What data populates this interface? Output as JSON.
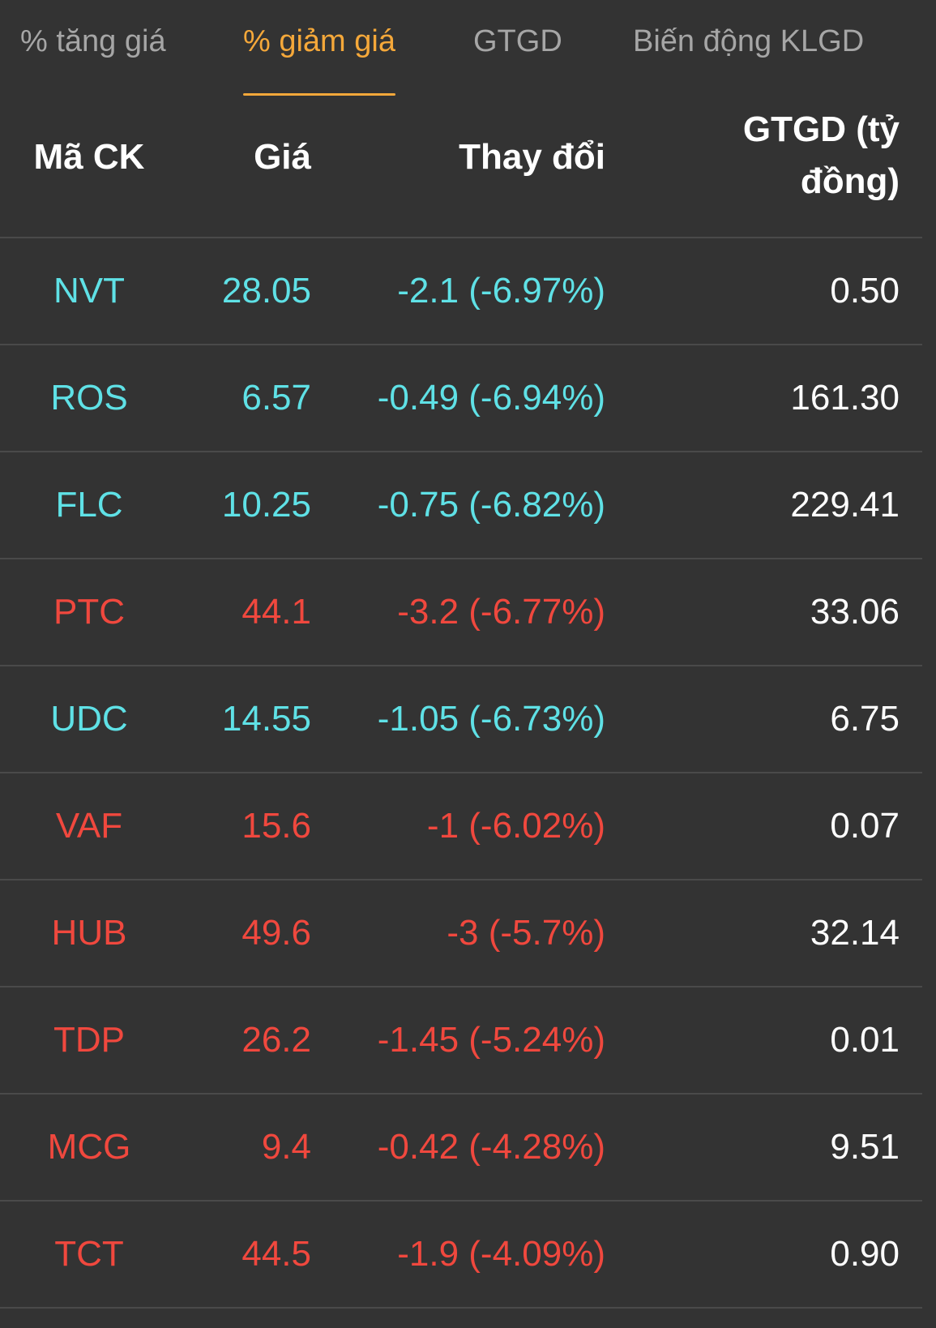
{
  "tabs": [
    {
      "label": "% tăng giá",
      "active": false
    },
    {
      "label": "% giảm giá",
      "active": true
    },
    {
      "label": "GTGD",
      "active": false
    },
    {
      "label": "Biến động KLGD",
      "active": false
    }
  ],
  "colors": {
    "accent": "#f5a83a",
    "down_floor": "#5fe1e6",
    "down": "#f0483e",
    "background": "#333333"
  },
  "table": {
    "headers": {
      "code": "Mã CK",
      "price": "Giá",
      "change": "Thay đổi",
      "value_line1": "GTGD (tỷ",
      "value_line2": "đồng)"
    },
    "rows": [
      {
        "code": "NVT",
        "price": "28.05",
        "change": "-2.1 (-6.97%)",
        "value": "0.50",
        "color": "teal"
      },
      {
        "code": "ROS",
        "price": "6.57",
        "change": "-0.49 (-6.94%)",
        "value": "161.30",
        "color": "teal"
      },
      {
        "code": "FLC",
        "price": "10.25",
        "change": "-0.75 (-6.82%)",
        "value": "229.41",
        "color": "teal"
      },
      {
        "code": "PTC",
        "price": "44.1",
        "change": "-3.2 (-6.77%)",
        "value": "33.06",
        "color": "red"
      },
      {
        "code": "UDC",
        "price": "14.55",
        "change": "-1.05 (-6.73%)",
        "value": "6.75",
        "color": "teal"
      },
      {
        "code": "VAF",
        "price": "15.6",
        "change": "-1 (-6.02%)",
        "value": "0.07",
        "color": "red"
      },
      {
        "code": "HUB",
        "price": "49.6",
        "change": "-3 (-5.7%)",
        "value": "32.14",
        "color": "red"
      },
      {
        "code": "TDP",
        "price": "26.2",
        "change": "-1.45 (-5.24%)",
        "value": "0.01",
        "color": "red"
      },
      {
        "code": "MCG",
        "price": "9.4",
        "change": "-0.42 (-4.28%)",
        "value": "9.51",
        "color": "red"
      },
      {
        "code": "TCT",
        "price": "44.5",
        "change": "-1.9 (-4.09%)",
        "value": "0.90",
        "color": "red"
      }
    ]
  }
}
